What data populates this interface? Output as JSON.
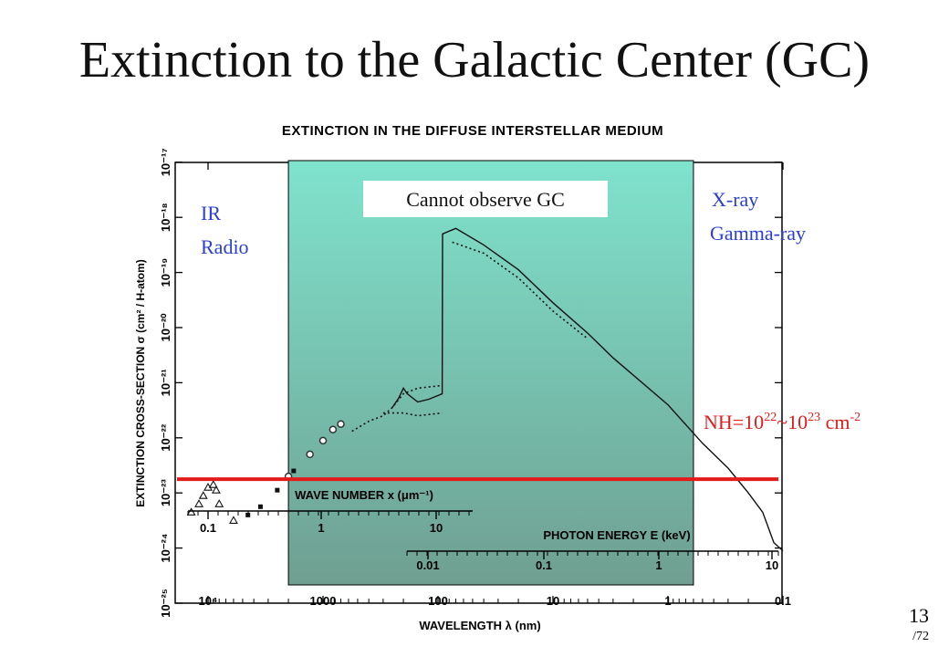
{
  "slide": {
    "title": "Extinction to the Galactic Center (GC)",
    "page_number": "13",
    "page_total": "/72"
  },
  "colors": {
    "band_top": "#7fe3cd",
    "band_bottom": "#6f9f91",
    "threshold_line": "#e31b1b",
    "region_text": "#2a3fd0"
  },
  "annotations": {
    "cannot_observe": "Cannot observe GC",
    "left_region": [
      "IR",
      "Radio"
    ],
    "right_region": [
      "X-ray",
      "Gamma-ray"
    ],
    "nh_label": {
      "base": "NH=10",
      "exp1": "22",
      "mid": "~10",
      "exp2": "23",
      "unit": " cm",
      "exp3": "-2"
    }
  },
  "chart_data": {
    "type": "line",
    "title": "EXTINCTION IN THE DIFFUSE INTERSTELLAR MEDIUM",
    "ylabel": "EXTINCTION CROSS-SECTION σ (cm² / H-atom)",
    "yscale": "log",
    "ylim": [
      1e-25,
      1e-17
    ],
    "y_ticks": [
      {
        "value": -25,
        "label": "10⁻²⁵"
      },
      {
        "value": -24,
        "label": "10⁻²⁴"
      },
      {
        "value": -23,
        "label": "10⁻²³"
      },
      {
        "value": -22,
        "label": "10⁻²²"
      },
      {
        "value": -21,
        "label": "10⁻²¹"
      },
      {
        "value": -20,
        "label": "10⁻²⁰"
      },
      {
        "value": -19,
        "label": "10⁻¹⁹"
      },
      {
        "value": -18,
        "label": "10⁻¹⁸"
      },
      {
        "value": -17,
        "label": "10⁻¹⁷"
      }
    ],
    "x_axes": {
      "wavelength": {
        "title": "WAVELENGTH λ (nm)",
        "scale": "log",
        "ticks": [
          {
            "value": 10000,
            "label": "10⁴"
          },
          {
            "value": 1000,
            "label": "1000"
          },
          {
            "value": 100,
            "label": "100"
          },
          {
            "value": 10,
            "label": "10"
          },
          {
            "value": 1,
            "label": "1"
          },
          {
            "value": 0.1,
            "label": "0.1"
          }
        ]
      },
      "wave_number": {
        "title": "WAVE NUMBER x (μm⁻¹)",
        "ticks": [
          {
            "value": 0.1,
            "label": "0.1"
          },
          {
            "value": 1,
            "label": "1"
          },
          {
            "value": 10,
            "label": "10"
          }
        ]
      },
      "photon_energy": {
        "title": "PHOTON ENERGY E (keV)",
        "ticks": [
          {
            "value": 0.01,
            "label": "0.01"
          },
          {
            "value": 0.1,
            "label": "0.1"
          },
          {
            "value": 1,
            "label": "1"
          },
          {
            "value": 10,
            "label": "10"
          }
        ]
      }
    },
    "series": [
      {
        "style": "solid",
        "points": [
          [
            250,
            -21.45
          ],
          [
            220,
            -21.28
          ],
          [
            200,
            -21.1
          ],
          [
            185,
            -21.2
          ],
          [
            150,
            -21.35
          ],
          [
            120,
            -21.3
          ],
          [
            92,
            -21.2
          ],
          [
            91.2,
            -18.3
          ],
          [
            70,
            -18.2
          ],
          [
            40,
            -18.5
          ],
          [
            20,
            -18.95
          ],
          [
            10,
            -19.55
          ],
          [
            5,
            -20.1
          ],
          [
            3,
            -20.55
          ],
          [
            1,
            -21.4
          ],
          [
            0.5,
            -22.1
          ],
          [
            0.3,
            -22.55
          ],
          [
            0.2,
            -23.0
          ],
          [
            0.15,
            -23.35
          ],
          [
            0.13,
            -23.7
          ],
          [
            0.12,
            -23.9
          ],
          [
            0.1,
            -24.05
          ]
        ]
      },
      {
        "style": "dotted-upper",
        "points": [
          [
            560,
            -21.88
          ],
          [
            400,
            -21.7
          ],
          [
            300,
            -21.6
          ],
          [
            250,
            -21.45
          ],
          [
            200,
            -21.2
          ],
          [
            150,
            -21.1
          ],
          [
            92,
            -21.05
          ]
        ]
      },
      {
        "style": "dotted-lower",
        "points": [
          [
            300,
            -21.55
          ],
          [
            200,
            -21.55
          ],
          [
            150,
            -21.6
          ],
          [
            92,
            -21.55
          ]
        ]
      },
      {
        "style": "dotted-xray",
        "points": [
          [
            75,
            -18.45
          ],
          [
            40,
            -18.65
          ],
          [
            20,
            -19.1
          ],
          [
            10,
            -19.7
          ],
          [
            5,
            -20.2
          ]
        ]
      }
    ],
    "markers": [
      {
        "shape": "circle",
        "points": [
          [
            2000,
            -22.7
          ],
          [
            1300,
            -22.3
          ],
          [
            1000,
            -22.05
          ],
          [
            820,
            -21.85
          ],
          [
            700,
            -21.75
          ]
        ]
      },
      {
        "shape": "square",
        "points": [
          [
            4500,
            -23.4
          ],
          [
            3500,
            -23.25
          ],
          [
            2500,
            -22.95
          ],
          [
            1800,
            -22.6
          ]
        ]
      },
      {
        "shape": "triangle",
        "points": [
          [
            14000,
            -23.35
          ],
          [
            12000,
            -23.2
          ],
          [
            11000,
            -23.05
          ],
          [
            10000,
            -22.9
          ],
          [
            9000,
            -22.85
          ],
          [
            8500,
            -22.95
          ],
          [
            8000,
            -23.2
          ],
          [
            6000,
            -23.5
          ]
        ]
      }
    ],
    "shaded_band": {
      "wavelength_from": 2000,
      "wavelength_to": 0.6
    },
    "threshold_line": {
      "value": -22.75
    }
  }
}
